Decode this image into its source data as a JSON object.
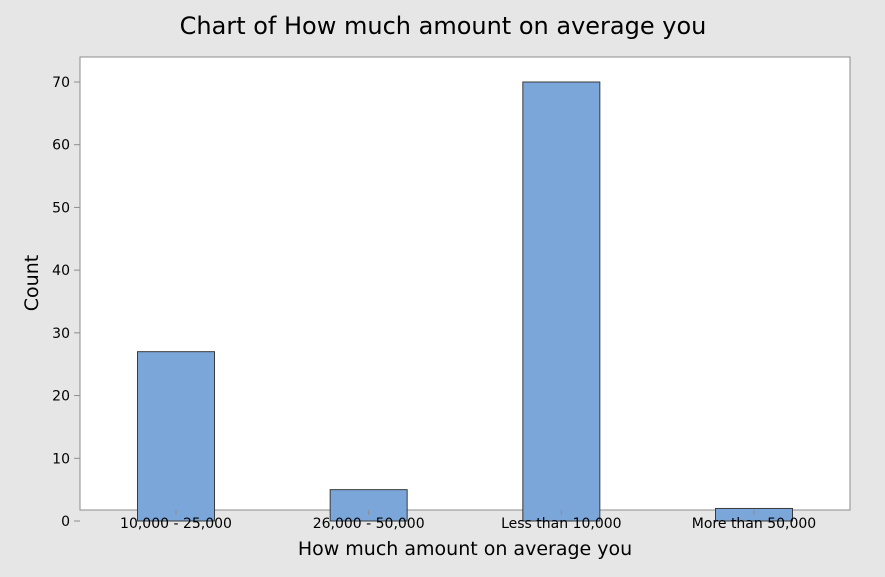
{
  "chart_data": {
    "type": "bar",
    "title": "Chart of How much amount on average you",
    "xlabel": "How much amount on average you",
    "ylabel": "Count",
    "categories": [
      "10,000 - 25,000",
      "26,000 - 50,000",
      "Less than 10,000",
      "More than 50,000"
    ],
    "values": [
      27,
      5,
      70,
      2
    ],
    "ylim": [
      0,
      74
    ],
    "yticks": [
      0,
      10,
      20,
      30,
      40,
      50,
      60,
      70
    ],
    "grid": false,
    "colors": {
      "background": "#e6e6e6",
      "plot_background": "#ffffff",
      "bar_fill": "#7ba6da",
      "bar_stroke": "#3a3a3a",
      "axis": "#8c8c8c"
    }
  }
}
